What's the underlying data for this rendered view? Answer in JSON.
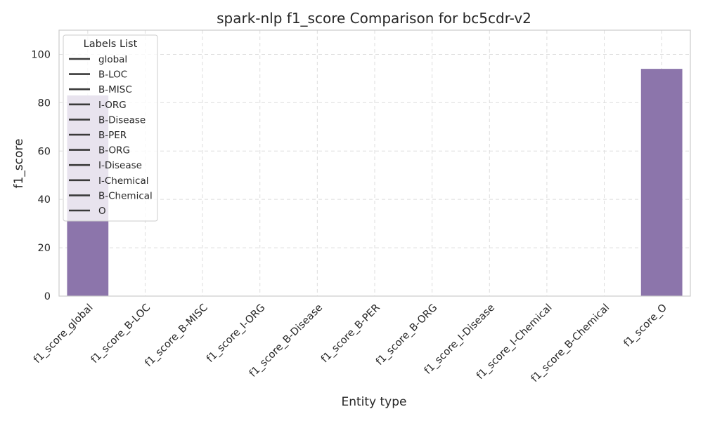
{
  "chart_data": {
    "type": "bar",
    "title": "spark-nlp  f1_score Comparison for bc5cdr-v2",
    "xlabel": "Entity type",
    "ylabel": "f1_score",
    "ylim": [
      0,
      110
    ],
    "yticks": [
      0,
      20,
      40,
      60,
      80,
      100
    ],
    "categories": [
      "f1_score_global",
      "f1_score_B-LOC",
      "f1_score_B-MISC",
      "f1_score_I-ORG",
      "f1_score_B-Disease",
      "f1_score_B-PER",
      "f1_score_B-ORG",
      "f1_score_I-Disease",
      "f1_score_I-Chemical",
      "f1_score_B-Chemical",
      "f1_score_O"
    ],
    "values": [
      83,
      0,
      0,
      0,
      0,
      0,
      0,
      0,
      0,
      0,
      94
    ],
    "bar_color": "#8c75ab",
    "grid": true,
    "legend": {
      "title": "Labels List",
      "placement": "top-left",
      "entries": [
        "global",
        "B-LOC",
        "B-MISC",
        "I-ORG",
        "B-Disease",
        "B-PER",
        "B-ORG",
        "I-Disease",
        "I-Chemical",
        "B-Chemical",
        "O"
      ]
    }
  }
}
